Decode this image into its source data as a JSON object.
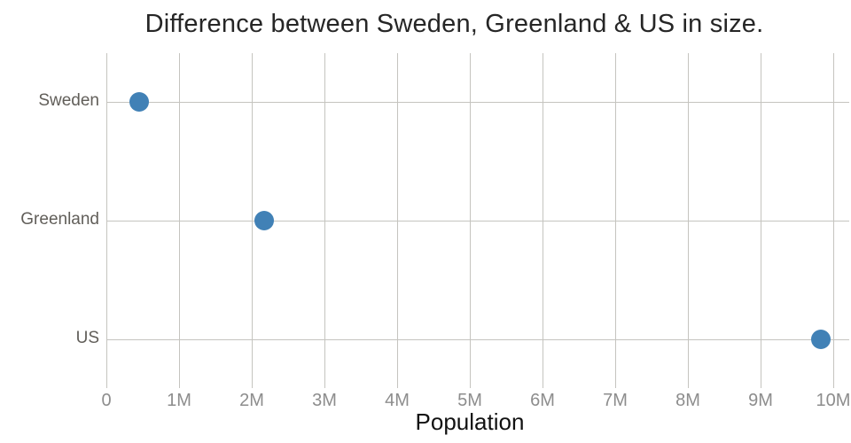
{
  "chart_data": {
    "type": "scatter",
    "orientation": "horizontal",
    "title": "Difference between Sweden, Greenland & US in size.",
    "xlabel": "Population",
    "ylabel": "",
    "categories": [
      "Sweden",
      "Greenland",
      "US"
    ],
    "series": [
      {
        "name": "size",
        "values_millions": [
          0.45,
          2.17,
          9.83
        ]
      }
    ],
    "xlim_millions": [
      0,
      10
    ],
    "x_tick_values_millions": [
      0,
      1,
      2,
      3,
      4,
      5,
      6,
      7,
      8,
      9,
      10
    ],
    "x_tick_labels": [
      "0",
      "1M",
      "2M",
      "3M",
      "4M",
      "5M",
      "6M",
      "7M",
      "8M",
      "9M",
      "10M"
    ],
    "grid": true,
    "legend": "none",
    "colors": {
      "marker": "#4181b6",
      "gridline": "#c5c4bf",
      "tick_label": "#8d8d8d",
      "category_label": "#615e59",
      "title": "#262626",
      "axis_title": "#111111",
      "background": "#ffffff"
    }
  }
}
